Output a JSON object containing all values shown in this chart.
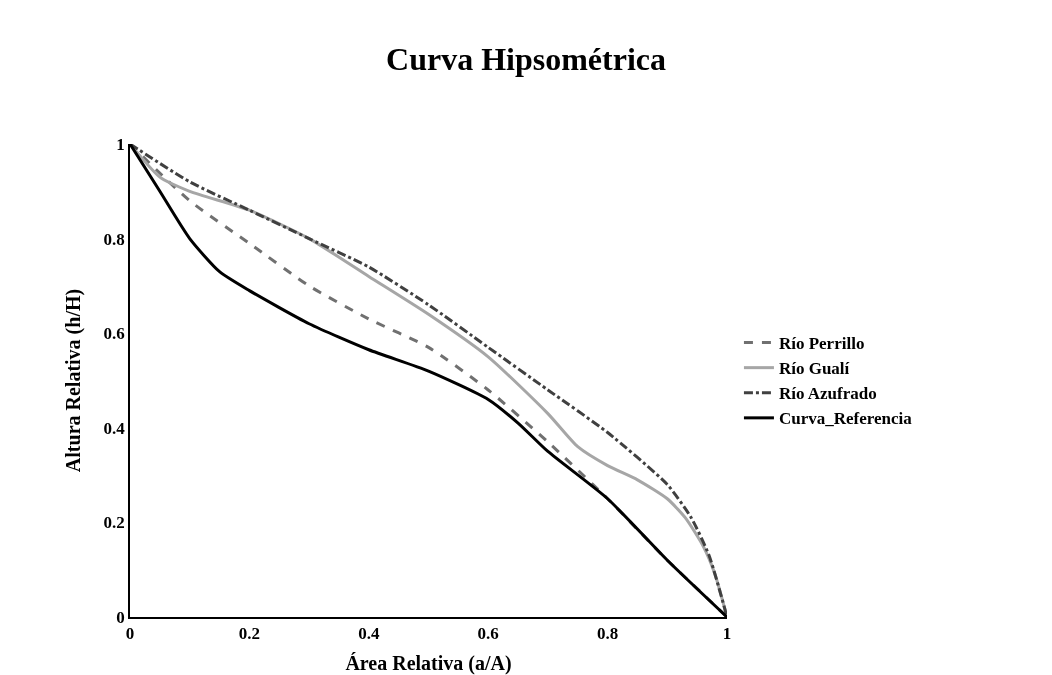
{
  "chart_data": {
    "type": "line",
    "title": "Curva Hipsométrica",
    "xlabel": "Área Relativa (a/A)",
    "ylabel": "Altura Relativa (h/H)",
    "xlim": [
      0,
      1
    ],
    "xticks": [
      0,
      0.2,
      0.4,
      0.6,
      0.8,
      1
    ],
    "ylim": [
      0,
      1
    ],
    "yticks": [
      0,
      0.2,
      0.4,
      0.6,
      0.8,
      1
    ],
    "grid": false,
    "legend": "right",
    "marker": "none",
    "series": [
      {
        "name": "Río Perrillo",
        "color": "#707070",
        "line_style": "dashed",
        "x": [
          0,
          0.1,
          0.2,
          0.3,
          0.4,
          0.5,
          0.6,
          0.7,
          0.8,
          0.9,
          0.95,
          1
        ],
        "values": [
          1,
          0.88,
          0.79,
          0.7,
          0.63,
          0.57,
          0.48,
          0.37,
          0.25,
          0.12,
          0.06,
          0
        ]
      },
      {
        "name": "Río Gualí",
        "color": "#a6a6a6",
        "line_style": "solid",
        "x": [
          0,
          0.05,
          0.1,
          0.2,
          0.3,
          0.4,
          0.5,
          0.6,
          0.7,
          0.75,
          0.8,
          0.85,
          0.9,
          0.93,
          0.96,
          0.98,
          1
        ],
        "values": [
          1,
          0.93,
          0.9,
          0.86,
          0.8,
          0.72,
          0.64,
          0.55,
          0.43,
          0.36,
          0.32,
          0.29,
          0.25,
          0.21,
          0.15,
          0.09,
          0
        ]
      },
      {
        "name": "Río Azufrado",
        "color": "#404040",
        "line_style": "dashdot",
        "x": [
          0,
          0.1,
          0.2,
          0.3,
          0.4,
          0.5,
          0.6,
          0.7,
          0.8,
          0.9,
          0.94,
          0.97,
          1
        ],
        "values": [
          1,
          0.92,
          0.86,
          0.8,
          0.74,
          0.66,
          0.57,
          0.48,
          0.39,
          0.28,
          0.21,
          0.13,
          0
        ]
      },
      {
        "name": "Curva_Referencia",
        "color": "#000000",
        "line_style": "solid",
        "x": [
          0,
          0.05,
          0.1,
          0.15,
          0.2,
          0.3,
          0.4,
          0.5,
          0.6,
          0.65,
          0.7,
          0.8,
          0.9,
          1
        ],
        "values": [
          1,
          0.9,
          0.8,
          0.73,
          0.69,
          0.62,
          0.565,
          0.52,
          0.46,
          0.41,
          0.35,
          0.25,
          0.12,
          0
        ]
      }
    ]
  }
}
